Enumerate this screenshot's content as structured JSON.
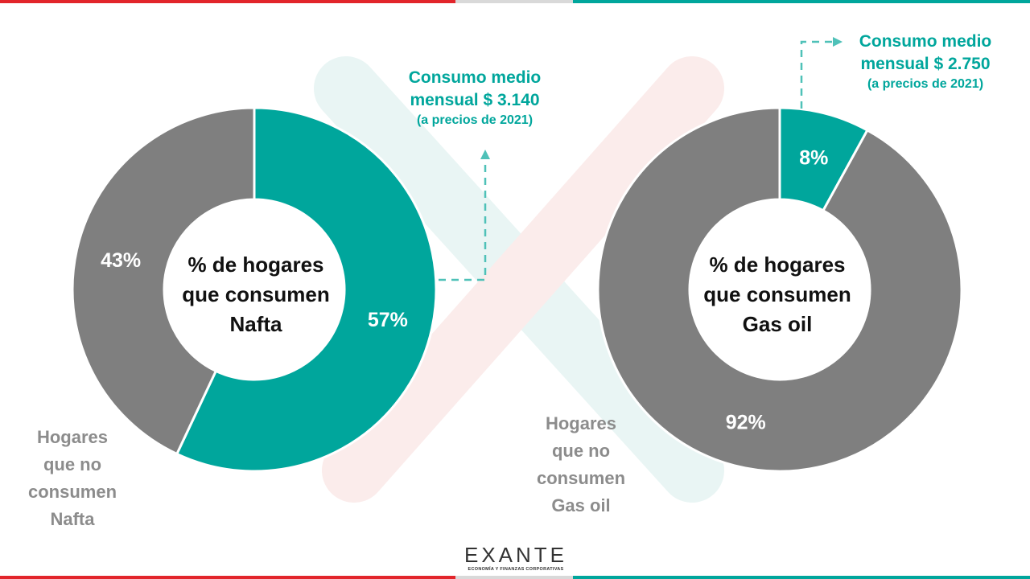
{
  "chart_data": [
    {
      "type": "donut",
      "title": "% de hogares que consumen Nafta",
      "title_lines": [
        "% de hogares",
        "que consumen",
        "Nafta"
      ],
      "slices": [
        {
          "label": "Hogares que consumen Nafta",
          "value": 57,
          "display": "57%",
          "color": "#00a69c"
        },
        {
          "label": "Hogares que no consumen Nafta",
          "value": 43,
          "display": "43%",
          "color": "#7f7f7f"
        }
      ],
      "outside_label_lines": [
        "Hogares",
        "que no",
        "consumen",
        "Nafta"
      ],
      "annotation_lines": [
        "Consumo medio",
        "mensual $ 3.140"
      ],
      "annotation_note": "(a precios de 2021)"
    },
    {
      "type": "donut",
      "title": "% de hogares que consumen Gas oil",
      "title_lines": [
        "% de hogares",
        "que consumen",
        "Gas oil"
      ],
      "slices": [
        {
          "label": "Hogares que consumen Gas oil",
          "value": 8,
          "display": "8%",
          "color": "#00a69c"
        },
        {
          "label": "Hogares que no consumen Gas oil",
          "value": 92,
          "display": "92%",
          "color": "#7f7f7f"
        }
      ],
      "outside_label_lines": [
        "Hogares",
        "que no",
        "consumen",
        "Gas oil"
      ],
      "annotation_lines": [
        "Consumo medio",
        "mensual $ 2.750"
      ],
      "annotation_note": "(a precios de 2021)"
    }
  ],
  "colors": {
    "accent": "#00a69c",
    "gray_slice": "#7f7f7f",
    "brand_red": "#e2252b",
    "label_gray": "#8c8c8c"
  },
  "logo": {
    "word": "EXANTE",
    "tagline": "ECONOMÍA Y FINANZAS CORPORATIVAS"
  }
}
